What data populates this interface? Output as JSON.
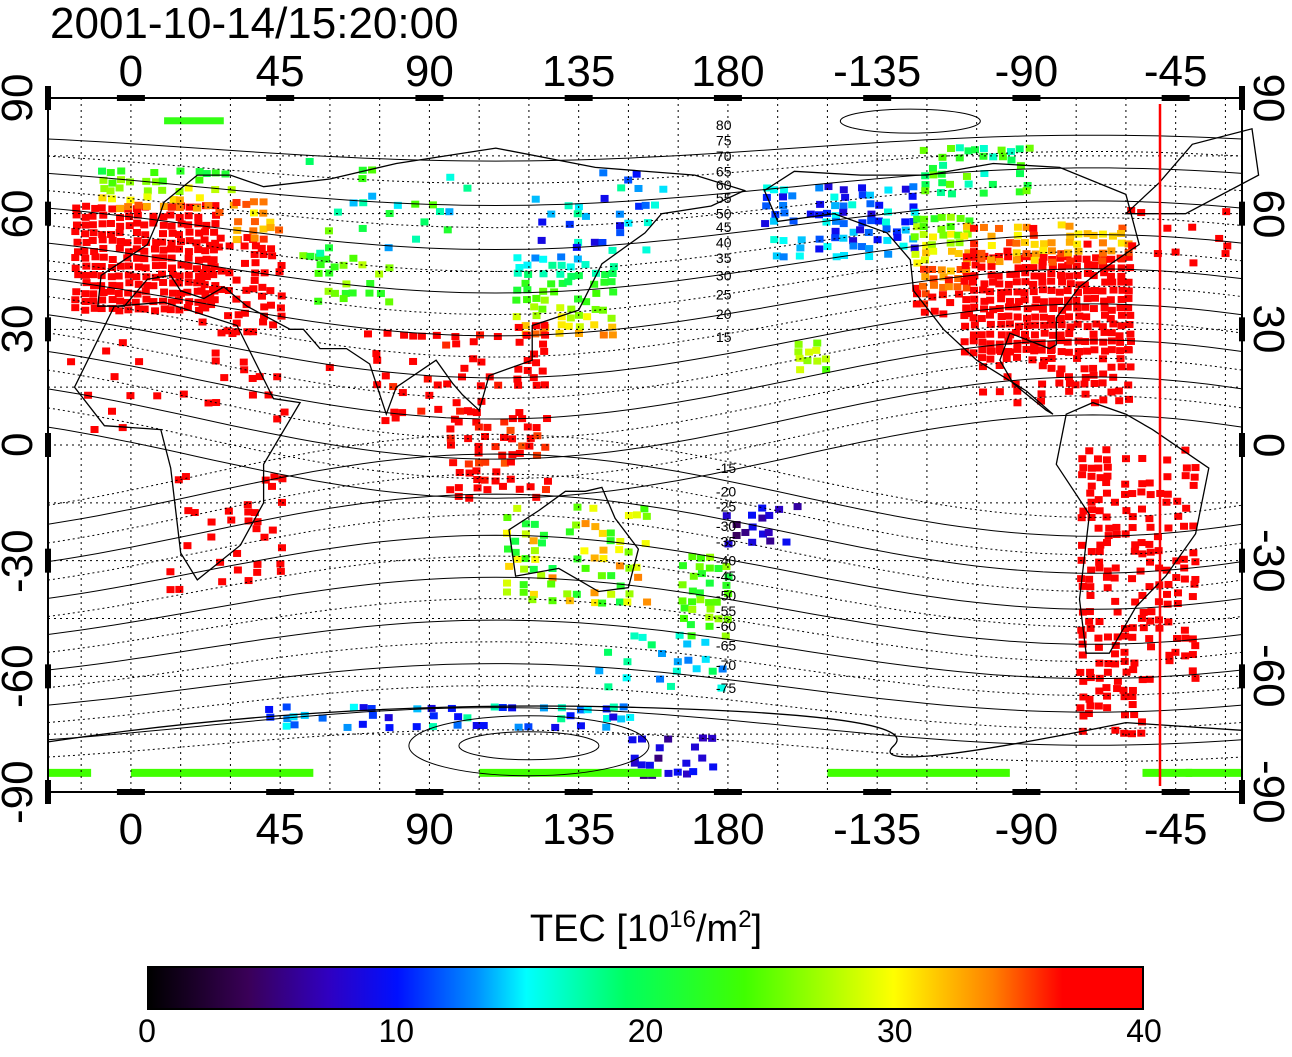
{
  "title": "2001-10-14/15:20:00",
  "map": {
    "projection": "equirectangular",
    "lon_center": 0,
    "lon_range": [
      -25,
      335
    ],
    "lat_range": [
      -90,
      90
    ],
    "top_lon_ticks": [
      "0",
      "45",
      "90",
      "135",
      "180",
      "-135",
      "-90",
      "-45"
    ],
    "bottom_lon_ticks": [
      "0",
      "45",
      "90",
      "135",
      "180",
      "-135",
      "-90",
      "-45"
    ],
    "left_lat_ticks": [
      "90",
      "60",
      "30",
      "0",
      "-30",
      "-60",
      "-90"
    ],
    "right_lat_ticks": [
      "90",
      "60",
      "30",
      "0",
      "-30",
      "-60",
      "-90"
    ],
    "terminator_lon": -50,
    "mag_lat_labels": [
      "80",
      "75",
      "70",
      "65",
      "60",
      "55",
      "50",
      "45",
      "40",
      "35",
      "30",
      "25",
      "20",
      "15",
      "-15",
      "-20",
      "-25",
      "-30",
      "-35",
      "-40",
      "-45",
      "-50",
      "-55",
      "-60",
      "-65",
      "-70",
      "-75"
    ],
    "colors": {
      "terminator": "#ff0000",
      "frame": "#000000"
    }
  },
  "colorbar": {
    "title": "TEC  [10",
    "title_sup1": "16",
    "title_mid": "/m",
    "title_sup2": "2",
    "title_end": "]",
    "ticks": [
      "0",
      "10",
      "20",
      "30",
      "40"
    ],
    "range": [
      0,
      40
    ]
  },
  "tec_regions": [
    {
      "name": "europe",
      "value": 38
    },
    {
      "name": "north-america",
      "value": 38
    },
    {
      "name": "south-america",
      "value": 38
    },
    {
      "name": "east-asia",
      "value": 16
    },
    {
      "name": "siberia",
      "value": 12
    },
    {
      "name": "antarctica-ring",
      "value": 12
    },
    {
      "name": "australia",
      "value": 22
    }
  ]
}
